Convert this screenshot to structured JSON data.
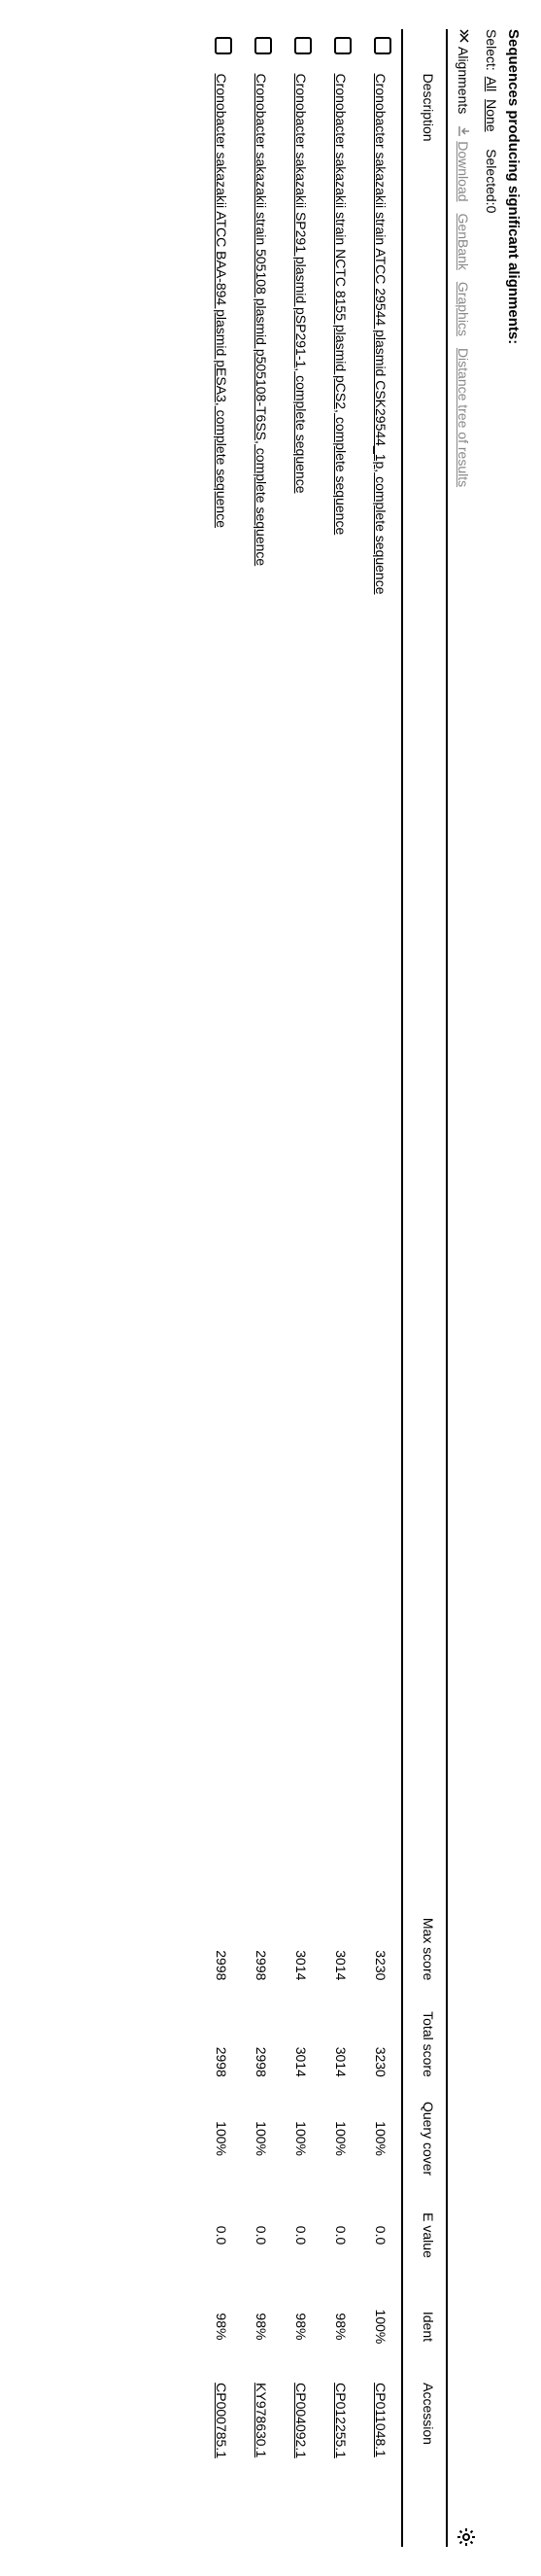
{
  "title": "Sequences producing significant alignments:",
  "select": {
    "label": "Select:",
    "all": "All",
    "none": "None",
    "selected_label": "Selected:",
    "selected_count": 0
  },
  "toolbar": {
    "alignments": "Alignments",
    "download": "Download",
    "genbank": "GenBank",
    "graphics": "Graphics",
    "distance": "Distance tree of results"
  },
  "columns": {
    "description": "Description",
    "max_score": "Max score",
    "total_score": "Total score",
    "query_cover": "Query cover",
    "e_value": "E value",
    "ident": "Ident",
    "accession": "Accession"
  },
  "rows": [
    {
      "description": "Cronobacter sakazakii strain ATCC 29544 plasmid CSK29544_1p, complete sequence",
      "max_score": "3230",
      "total_score": "3230",
      "query_cover": "100%",
      "e_value": "0.0",
      "ident": "100%",
      "accession": "CP011048.1"
    },
    {
      "description": "Cronobacter sakazakii strain NCTC 8155 plasmid pCS2, complete sequence",
      "max_score": "3014",
      "total_score": "3014",
      "query_cover": "100%",
      "e_value": "0.0",
      "ident": "98%",
      "accession": "CP012255.1"
    },
    {
      "description": "Cronobacter sakazakii SP291 plasmid pSP291-1, complete sequence",
      "max_score": "3014",
      "total_score": "3014",
      "query_cover": "100%",
      "e_value": "0.0",
      "ident": "98%",
      "accession": "CP004092.1"
    },
    {
      "description": "Cronobacter sakazakii strain 505108 plasmid p505108-T6SS, complete sequence",
      "max_score": "2998",
      "total_score": "2998",
      "query_cover": "100%",
      "e_value": "0.0",
      "ident": "98%",
      "accession": "KY978630.1"
    },
    {
      "description": "Cronobacter sakazakii ATCC BAA-894 plasmid pESA3, complete sequence",
      "max_score": "2998",
      "total_score": "2998",
      "query_cover": "100%",
      "e_value": "0.0",
      "ident": "98%",
      "accession": "CP000785.1"
    }
  ]
}
